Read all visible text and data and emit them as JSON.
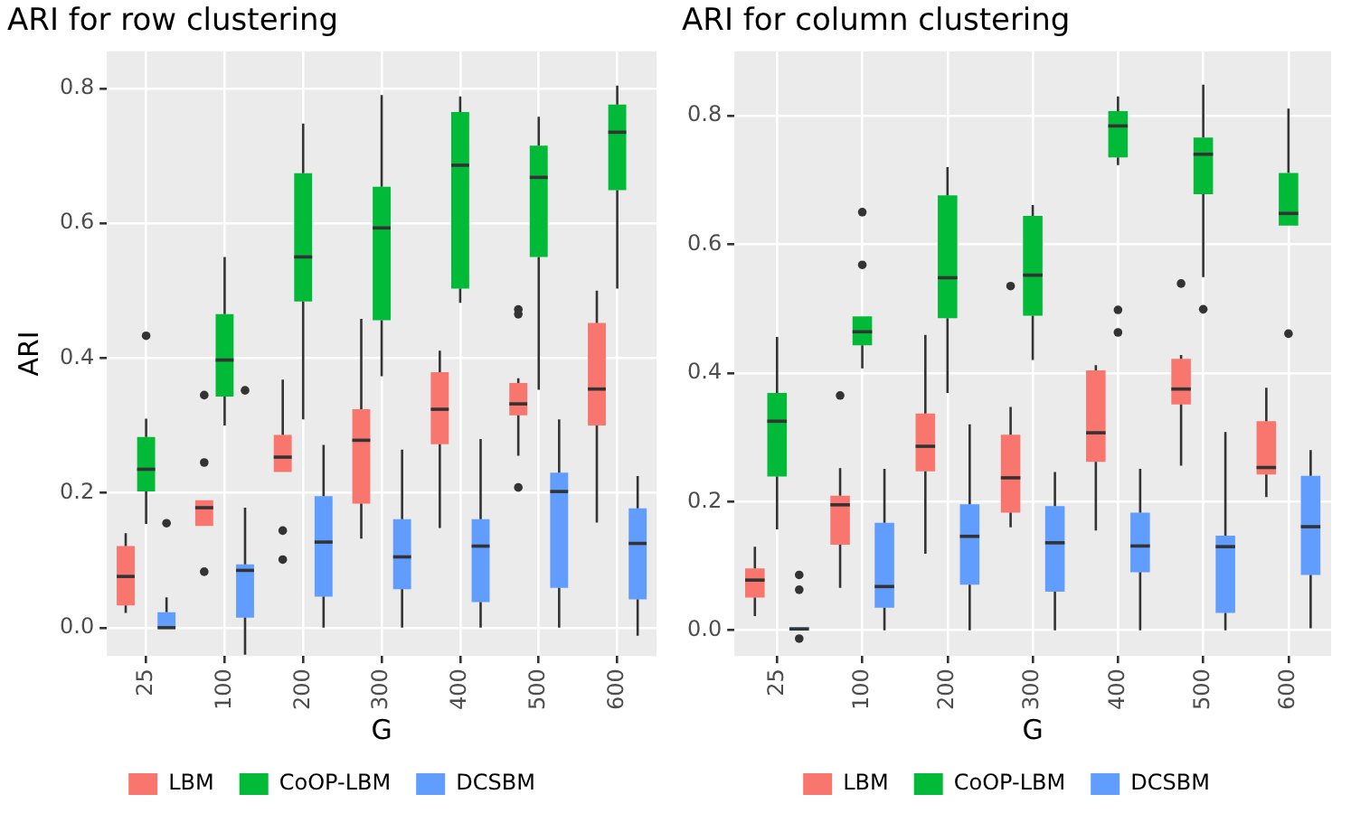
{
  "chart_data": [
    {
      "type": "box",
      "title": "ARI for row clustering",
      "xlabel": "G",
      "ylabel": "ARI",
      "categories": [
        "25",
        "100",
        "200",
        "300",
        "400",
        "500",
        "600"
      ],
      "ylim": [
        -0.042,
        0.855
      ],
      "yticks": [
        {
          "value": 0,
          "label": "0.0"
        },
        {
          "value": 0.2,
          "label": "0.2"
        },
        {
          "value": 0.4,
          "label": "0.4"
        },
        {
          "value": 0.6,
          "label": "0.6"
        },
        {
          "value": 0.8,
          "label": "0.8"
        }
      ],
      "grid": true,
      "legend": "bottom",
      "series": [
        {
          "name": "LBM",
          "color": "#f8766d",
          "boxes": [
            {
              "low": 0.022,
              "q1": 0.033,
              "median": 0.076,
              "q3": 0.121,
              "high": 0.14
            },
            {
              "low": 0.147,
              "q1": 0.151,
              "median": 0.178,
              "q3": 0.189,
              "high": 0.189,
              "outliers": [
                0.345,
                0.245,
                0.083
              ]
            },
            {
              "low": 0.23,
              "q1": 0.231,
              "median": 0.253,
              "q3": 0.286,
              "high": 0.368,
              "outliers": [
                0.144,
                0.101
              ]
            },
            {
              "low": 0.132,
              "q1": 0.184,
              "median": 0.278,
              "q3": 0.324,
              "high": 0.458
            },
            {
              "low": 0.148,
              "q1": 0.272,
              "median": 0.324,
              "q3": 0.379,
              "high": 0.411
            },
            {
              "low": 0.255,
              "q1": 0.315,
              "median": 0.332,
              "q3": 0.363,
              "high": 0.37,
              "outliers": [
                0.208,
                0.472,
                0.465
              ]
            },
            {
              "low": 0.156,
              "q1": 0.3,
              "median": 0.354,
              "q3": 0.452,
              "high": 0.5
            }
          ]
        },
        {
          "name": "CoOP-LBM",
          "color": "#00ba38",
          "boxes": [
            {
              "low": 0.154,
              "q1": 0.202,
              "median": 0.235,
              "q3": 0.283,
              "high": 0.31,
              "outliers": [
                0.433
              ]
            },
            {
              "low": 0.3,
              "q1": 0.343,
              "median": 0.397,
              "q3": 0.465,
              "high": 0.55
            },
            {
              "low": 0.309,
              "q1": 0.484,
              "median": 0.55,
              "q3": 0.674,
              "high": 0.748
            },
            {
              "low": 0.373,
              "q1": 0.456,
              "median": 0.593,
              "q3": 0.654,
              "high": 0.79
            },
            {
              "low": 0.482,
              "q1": 0.503,
              "median": 0.686,
              "q3": 0.765,
              "high": 0.788
            },
            {
              "low": 0.353,
              "q1": 0.55,
              "median": 0.668,
              "q3": 0.715,
              "high": 0.758
            },
            {
              "low": 0.503,
              "q1": 0.649,
              "median": 0.735,
              "q3": 0.776,
              "high": 0.804
            }
          ]
        },
        {
          "name": "DCSBM",
          "color": "#619cff",
          "boxes": [
            {
              "low": 0,
              "q1": 0,
              "median": 0,
              "q3": 0.023,
              "high": 0.045,
              "outliers": [
                0.155
              ]
            },
            {
              "low": -0.04,
              "q1": 0.015,
              "median": 0.085,
              "q3": 0.094,
              "high": 0.178,
              "outliers": [
                0.352
              ]
            },
            {
              "low": 0,
              "q1": 0.046,
              "median": 0.127,
              "q3": 0.195,
              "high": 0.271
            },
            {
              "low": 0,
              "q1": 0.057,
              "median": 0.105,
              "q3": 0.161,
              "high": 0.264
            },
            {
              "low": 0,
              "q1": 0.038,
              "median": 0.121,
              "q3": 0.161,
              "high": 0.28
            },
            {
              "low": 0,
              "q1": 0.059,
              "median": 0.202,
              "q3": 0.23,
              "high": 0.309
            },
            {
              "low": -0.012,
              "q1": 0.042,
              "median": 0.125,
              "q3": 0.177,
              "high": 0.225
            }
          ]
        }
      ]
    },
    {
      "type": "box",
      "title": "ARI for column clustering",
      "xlabel": "G",
      "categories": [
        "25",
        "100",
        "200",
        "300",
        "400",
        "500",
        "600"
      ],
      "ylim": [
        -0.04,
        0.9
      ],
      "yticks": [
        {
          "value": 0,
          "label": "0.0"
        },
        {
          "value": 0.2,
          "label": "0.2"
        },
        {
          "value": 0.4,
          "label": "0.4"
        },
        {
          "value": 0.6,
          "label": "0.6"
        },
        {
          "value": 0.8,
          "label": "0.8"
        }
      ],
      "grid": true,
      "legend": "bottom",
      "series": [
        {
          "name": "LBM",
          "color": "#f8766d",
          "boxes": [
            {
              "low": 0.022,
              "q1": 0.051,
              "median": 0.078,
              "q3": 0.096,
              "high": 0.13
            },
            {
              "low": 0.066,
              "q1": 0.133,
              "median": 0.195,
              "q3": 0.209,
              "high": 0.252,
              "outliers": [
                0.365
              ]
            },
            {
              "low": 0.119,
              "q1": 0.247,
              "median": 0.286,
              "q3": 0.337,
              "high": 0.459
            },
            {
              "low": 0.16,
              "q1": 0.183,
              "median": 0.237,
              "q3": 0.304,
              "high": 0.347,
              "outliers": [
                0.535
              ]
            },
            {
              "low": 0.155,
              "q1": 0.262,
              "median": 0.307,
              "q3": 0.404,
              "high": 0.412
            },
            {
              "low": 0.256,
              "q1": 0.351,
              "median": 0.375,
              "q3": 0.422,
              "high": 0.428,
              "outliers": [
                0.539
              ]
            },
            {
              "low": 0.207,
              "q1": 0.242,
              "median": 0.253,
              "q3": 0.325,
              "high": 0.377
            }
          ]
        },
        {
          "name": "CoOP-LBM",
          "color": "#00ba38",
          "boxes": [
            {
              "low": 0.157,
              "q1": 0.239,
              "median": 0.325,
              "q3": 0.369,
              "high": 0.456
            },
            {
              "low": 0.407,
              "q1": 0.443,
              "median": 0.464,
              "q3": 0.488,
              "high": 0.491,
              "outliers": [
                0.65,
                0.568
              ]
            },
            {
              "low": 0.369,
              "q1": 0.485,
              "median": 0.548,
              "q3": 0.676,
              "high": 0.72
            },
            {
              "low": 0.42,
              "q1": 0.489,
              "median": 0.552,
              "q3": 0.644,
              "high": 0.661
            },
            {
              "low": 0.723,
              "q1": 0.735,
              "median": 0.784,
              "q3": 0.807,
              "high": 0.83,
              "outliers": [
                0.498,
                0.463
              ]
            },
            {
              "low": 0.549,
              "q1": 0.678,
              "median": 0.74,
              "q3": 0.766,
              "high": 0.848,
              "outliers": [
                0.499
              ]
            },
            {
              "low": 0.629,
              "q1": 0.629,
              "median": 0.648,
              "q3": 0.711,
              "high": 0.811,
              "outliers": [
                0.461
              ]
            }
          ]
        },
        {
          "name": "DCSBM",
          "color": "#619cff",
          "boxes": [
            {
              "low": 0,
              "q1": 0,
              "median": 0.002,
              "q3": 0.005,
              "high": 0.005,
              "outliers": [
                0.086,
                0.063,
                -0.013
              ]
            },
            {
              "low": 0,
              "q1": 0.035,
              "median": 0.068,
              "q3": 0.167,
              "high": 0.251
            },
            {
              "low": 0,
              "q1": 0.071,
              "median": 0.146,
              "q3": 0.196,
              "high": 0.32
            },
            {
              "low": 0,
              "q1": 0.06,
              "median": 0.136,
              "q3": 0.193,
              "high": 0.246
            },
            {
              "low": 0,
              "q1": 0.09,
              "median": 0.131,
              "q3": 0.183,
              "high": 0.251
            },
            {
              "low": 0,
              "q1": 0.027,
              "median": 0.13,
              "q3": 0.147,
              "high": 0.308
            },
            {
              "low": 0.003,
              "q1": 0.086,
              "median": 0.161,
              "q3": 0.24,
              "high": 0.28
            }
          ]
        }
      ]
    }
  ]
}
